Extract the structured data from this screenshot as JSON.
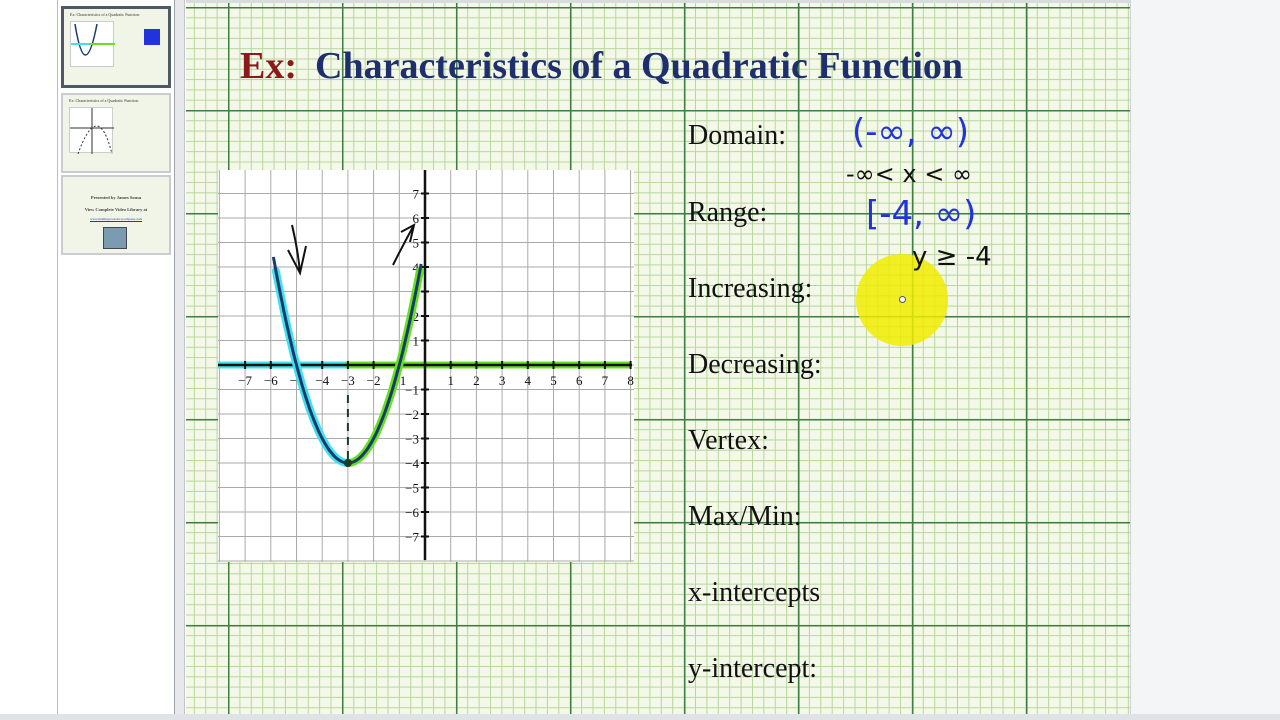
{
  "sidebar": {
    "thumbnails": [
      {
        "title": "Ex: Characteristics of a Quadratic Function",
        "selected": true
      },
      {
        "title": "Ex: Characteristics of a Quadratic Function",
        "selected": false
      },
      {
        "credit_line1": "Presented by James Sousa",
        "credit_line2": "View Complete Video Library at",
        "link": "www.mathispower4u.wordpress.com",
        "selected": false
      }
    ]
  },
  "slide": {
    "title_prefix": "Ex:",
    "title": "Characteristics of a Quadratic Function",
    "labels": [
      "Domain:",
      "Range:",
      "Increasing:",
      "Decreasing:",
      "Vertex:",
      "Max/Min:",
      "x-intercepts",
      "y-intercept:"
    ],
    "handwriting": {
      "domain_interval": "(-∞, ∞)",
      "domain_inequality": "-∞< x < ∞",
      "range_interval": "[-4, ∞)",
      "range_inequality": "y ≥ -4"
    },
    "colors": {
      "title": "#1f2f6e",
      "prefix": "#8b1a1a",
      "ink_blue": "#2233dd",
      "decreasing_highlight": "#3fe0f0",
      "increasing_highlight": "#66e020",
      "curve": "#1a3a6a",
      "pointer": "#f0ec00"
    }
  },
  "chart_data": {
    "type": "line",
    "function": "y = (x+3)^2 - 4",
    "x_ticks": [
      -7,
      -6,
      -5,
      -4,
      -3,
      -2,
      -1,
      1,
      2,
      3,
      4,
      5,
      6,
      7,
      8
    ],
    "y_ticks": [
      -7,
      -6,
      -5,
      -4,
      -3,
      -2,
      -1,
      1,
      2,
      3,
      4,
      5,
      6,
      7
    ],
    "xlim": [
      -8,
      8
    ],
    "ylim": [
      -8,
      8
    ],
    "vertex": [
      -3,
      -4
    ],
    "x_intercepts": [
      -5,
      -1
    ],
    "y_intercept": 5,
    "grid": true,
    "decreasing_interval": [
      -8,
      -3
    ],
    "increasing_interval": [
      -3,
      8
    ]
  }
}
